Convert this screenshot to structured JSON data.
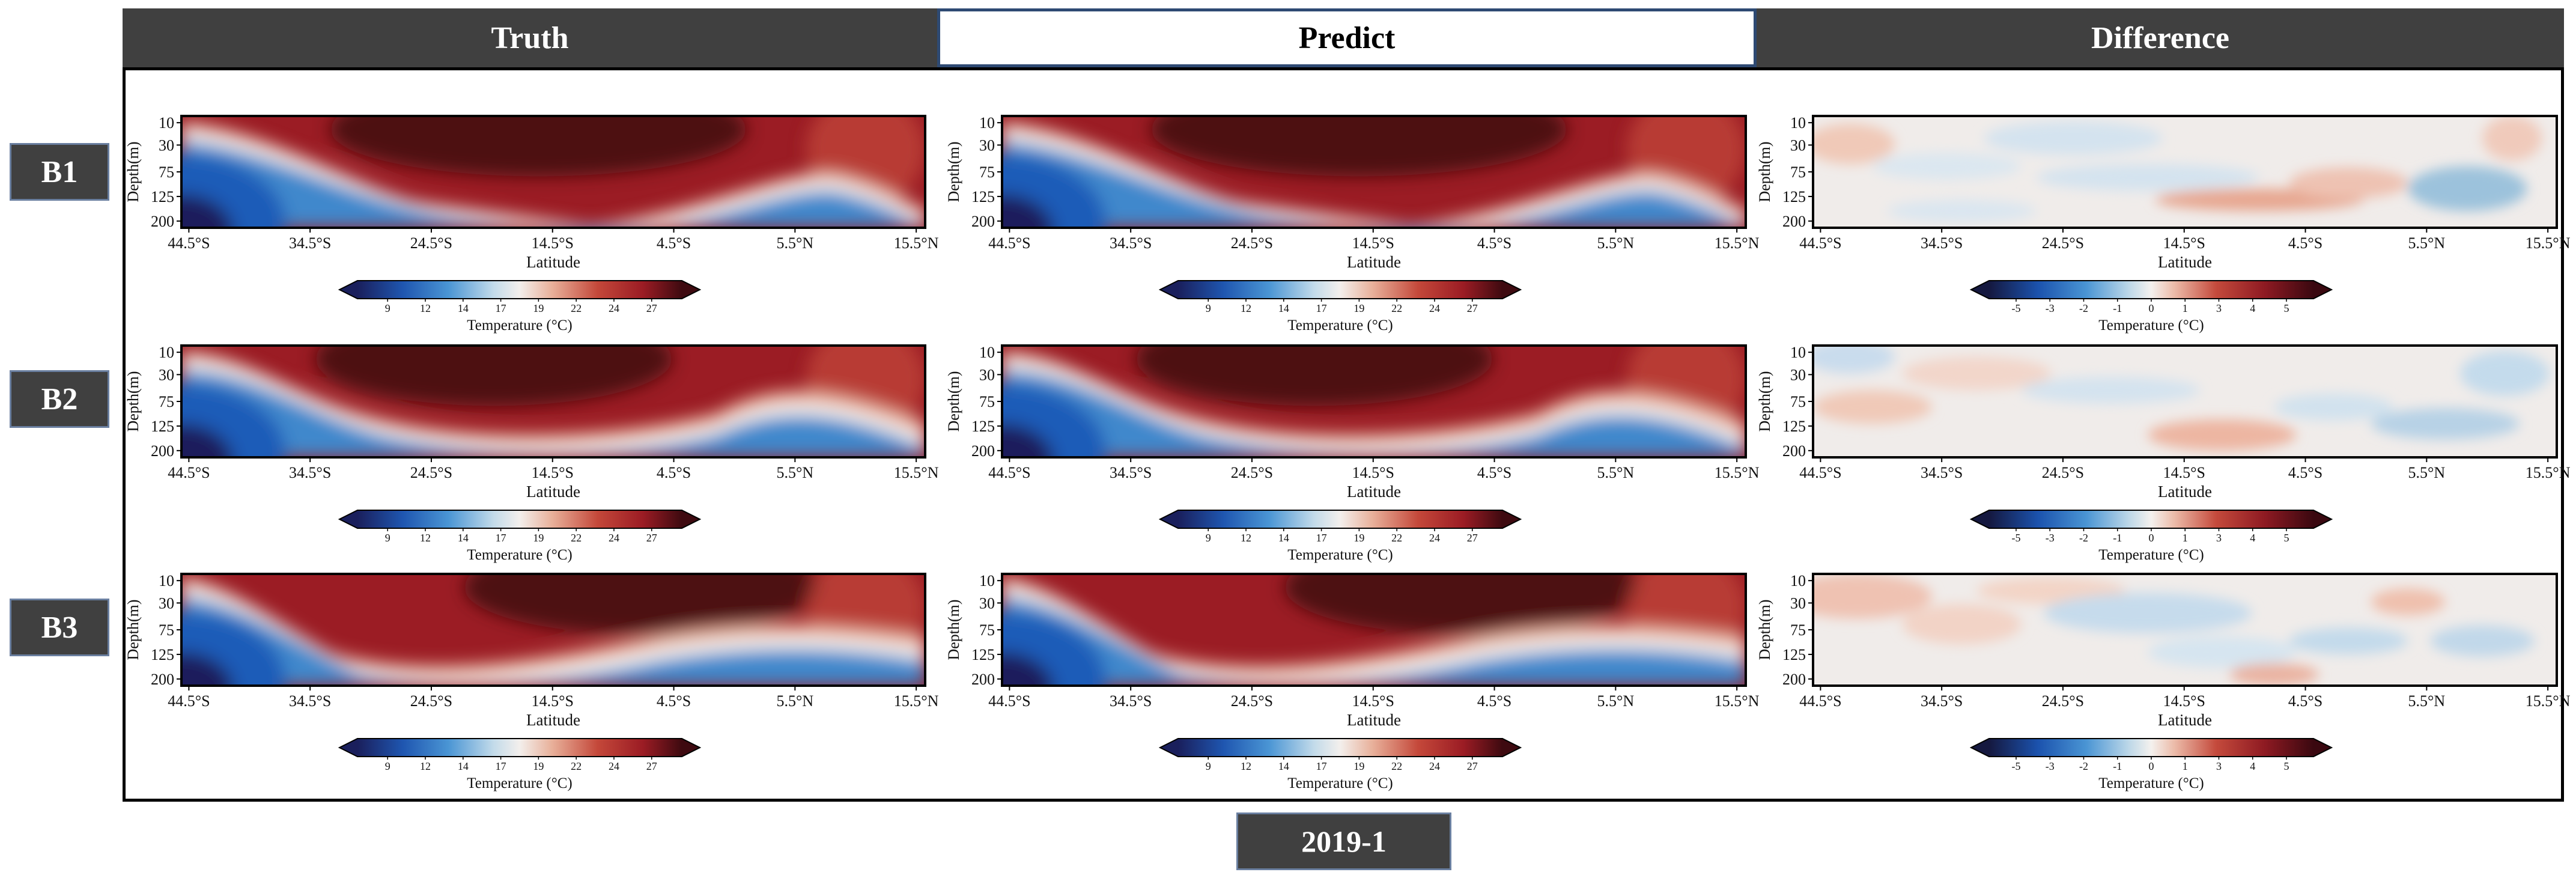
{
  "header": {
    "truth_label": "Truth",
    "predict_label": "Predict",
    "difference_label": "Difference"
  },
  "rows": [
    "B1",
    "B2",
    "B3"
  ],
  "date_label": "2019-1",
  "chart_data": {
    "type": "heatmap",
    "ylabel": "Depth(m)",
    "xlabel": "Latitude",
    "y_ticks": [
      "10",
      "30",
      "75",
      "125",
      "200"
    ],
    "x_ticks": [
      "44.5°S",
      "34.5°S",
      "24.5°S",
      "14.5°S",
      "4.5°S",
      "5.5°N",
      "15.5°N"
    ],
    "temperature_colorbar": {
      "label": "Temperature (°C)",
      "ticks": [
        "9",
        "12",
        "14",
        "17",
        "19",
        "22",
        "24",
        "27"
      ]
    },
    "difference_colorbar": {
      "label": "Temperature (°C)",
      "ticks": [
        "-5",
        "-3",
        "-2",
        "-1",
        "0",
        "1",
        "3",
        "4",
        "5"
      ]
    },
    "panels": [
      {
        "row": "B1",
        "column": "Truth"
      },
      {
        "row": "B1",
        "column": "Predict"
      },
      {
        "row": "B1",
        "column": "Difference"
      },
      {
        "row": "B2",
        "column": "Truth"
      },
      {
        "row": "B2",
        "column": "Predict"
      },
      {
        "row": "B2",
        "column": "Difference"
      },
      {
        "row": "B3",
        "column": "Truth"
      },
      {
        "row": "B3",
        "column": "Predict"
      },
      {
        "row": "B3",
        "column": "Difference"
      }
    ]
  }
}
